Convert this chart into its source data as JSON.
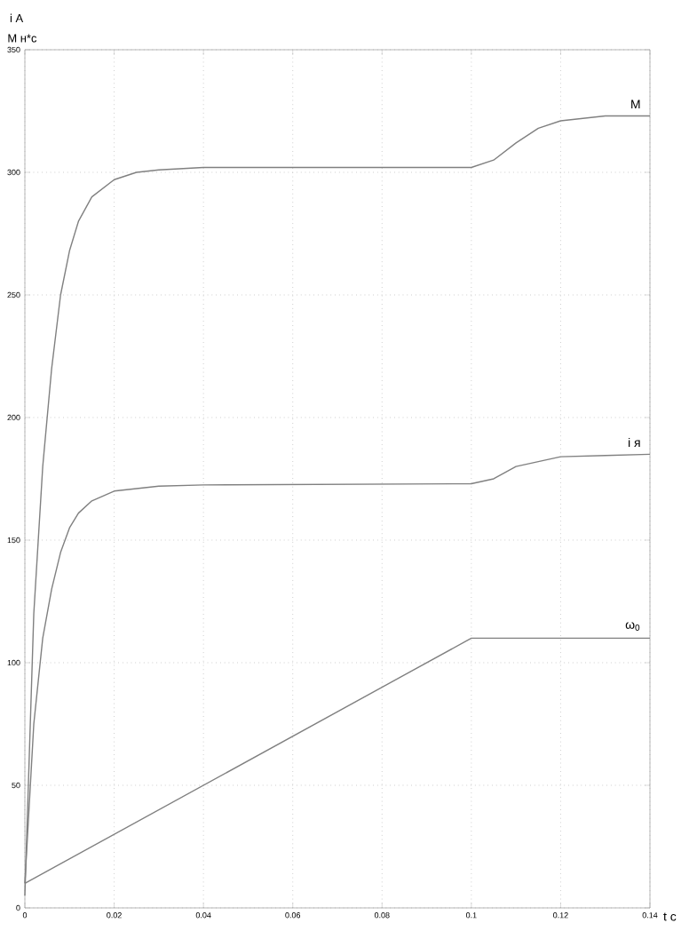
{
  "chart_data": {
    "type": "line",
    "xlabel": "t c",
    "ylabel": "i A",
    "annotations": [
      "M н*с"
    ],
    "xlim": [
      0,
      0.14
    ],
    "ylim": [
      0,
      350
    ],
    "xticks": [
      0,
      0.02,
      0.04,
      0.06,
      0.08,
      0.1,
      0.12,
      0.14
    ],
    "yticks": [
      0,
      50,
      100,
      150,
      200,
      250,
      300,
      350
    ],
    "grid": true,
    "line_style": "solid",
    "marker": "none",
    "series": [
      {
        "name": "M",
        "color": "#808080",
        "x": [
          0,
          0.002,
          0.004,
          0.006,
          0.008,
          0.01,
          0.012,
          0.015,
          0.02,
          0.025,
          0.03,
          0.04,
          0.1,
          0.105,
          0.11,
          0.115,
          0.12,
          0.13,
          0.14
        ],
        "values": [
          5,
          120,
          180,
          220,
          250,
          268,
          280,
          290,
          297,
          300,
          301,
          302,
          302,
          305,
          312,
          318,
          321,
          323,
          323
        ]
      },
      {
        "name": "i я",
        "color": "#808080",
        "x": [
          0,
          0.002,
          0.004,
          0.006,
          0.008,
          0.01,
          0.012,
          0.015,
          0.02,
          0.03,
          0.04,
          0.1,
          0.105,
          0.11,
          0.115,
          0.12,
          0.13,
          0.14
        ],
        "values": [
          10,
          75,
          110,
          130,
          145,
          155,
          161,
          166,
          170,
          172,
          172.5,
          173,
          175,
          180,
          182,
          184,
          184.5,
          185
        ]
      },
      {
        "name": "ω$_{0}$",
        "color": "#808080",
        "x": [
          0,
          0.1,
          0.14
        ],
        "values": [
          10,
          110,
          110
        ]
      }
    ]
  }
}
